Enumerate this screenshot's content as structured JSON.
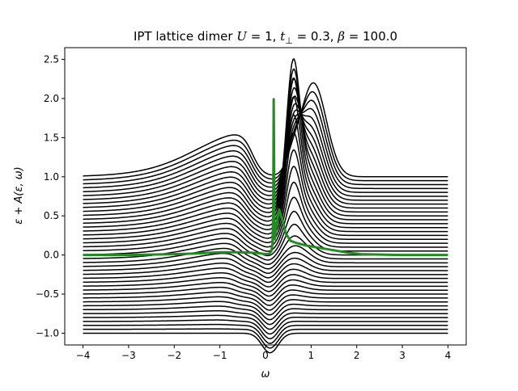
{
  "chart_data": {
    "type": "line",
    "title": "IPT lattice dimer U = 1, t⊥ = 0.3, β = 100.0",
    "title_parts": {
      "prefix": "IPT lattice dimer ",
      "U_symbol": "U",
      "U_value": " = 1, ",
      "t_symbol": "t",
      "t_subscript": "⊥",
      "t_value": " = 0.3, ",
      "beta_symbol": "β",
      "beta_value": " = 100.0"
    },
    "xlabel": "ω",
    "ylabel": "ε + A(ε, ω)",
    "xlim": [
      -4.4,
      4.4
    ],
    "ylim": [
      -1.15,
      2.65
    ],
    "x_ticks": [
      -4,
      -3,
      -2,
      -1,
      0,
      1,
      2,
      3,
      4
    ],
    "x_tick_labels": [
      "−4",
      "−3",
      "−2",
      "−1",
      "0",
      "1",
      "2",
      "3",
      "4"
    ],
    "y_ticks": [
      -1.0,
      -0.5,
      0.0,
      0.5,
      1.0,
      1.5,
      2.0,
      2.5
    ],
    "y_tick_labels": [
      "−1.0",
      "−0.5",
      "0.0",
      "0.5",
      "1.0",
      "1.5",
      "2.0",
      "2.5"
    ],
    "grid": false,
    "legend": "none",
    "x_range": [
      -4,
      4
    ],
    "offset_range": [
      -1.0,
      1.0
    ],
    "num_curves": 41,
    "spectral_model": {
      "delta_peak_height": 1.6,
      "delta_peak_position": 0.6,
      "delta_peak_width": 0.2,
      "upper_band_peak_height": 1.2,
      "upper_band_center": 0.7,
      "upper_band_center_slope": 0.35,
      "upper_band_width": 0.4,
      "lower_band_edge_height": 0.7,
      "lower_band_edge_center": -0.55,
      "lower_band_edge_slope": 0.25,
      "lower_band_edge_width": 0.12,
      "dip_depth": 0.25,
      "dip_center": 0.1,
      "dip_width": 0.25
    },
    "highlight_series": {
      "name": "",
      "color": "#228B22",
      "x": [
        -4,
        -3,
        -2,
        -1.5,
        -1,
        -0.6,
        -0.3,
        -0.1,
        0,
        0.08,
        0.13,
        0.155,
        0.17,
        0.18,
        0.2,
        0.25,
        0.3,
        0.38,
        0.45,
        0.55,
        0.7,
        0.9,
        1.2,
        1.5,
        1.8,
        2.1,
        2.5,
        3,
        3.5,
        4
      ],
      "y": [
        0.0,
        0.0,
        0.01,
        0.02,
        0.035,
        0.035,
        0.03,
        0.02,
        0.01,
        0.015,
        0.05,
        0.15,
        0.55,
        1.99,
        0.2,
        0.4,
        0.58,
        0.42,
        0.27,
        0.18,
        0.15,
        0.12,
        0.09,
        0.06,
        0.03,
        0.01,
        0.005,
        0.0,
        0.0,
        0.0
      ]
    },
    "colors": {
      "curves": "#000000",
      "highlight": "#228B22",
      "axes": "#000000",
      "background": "#ffffff"
    }
  }
}
